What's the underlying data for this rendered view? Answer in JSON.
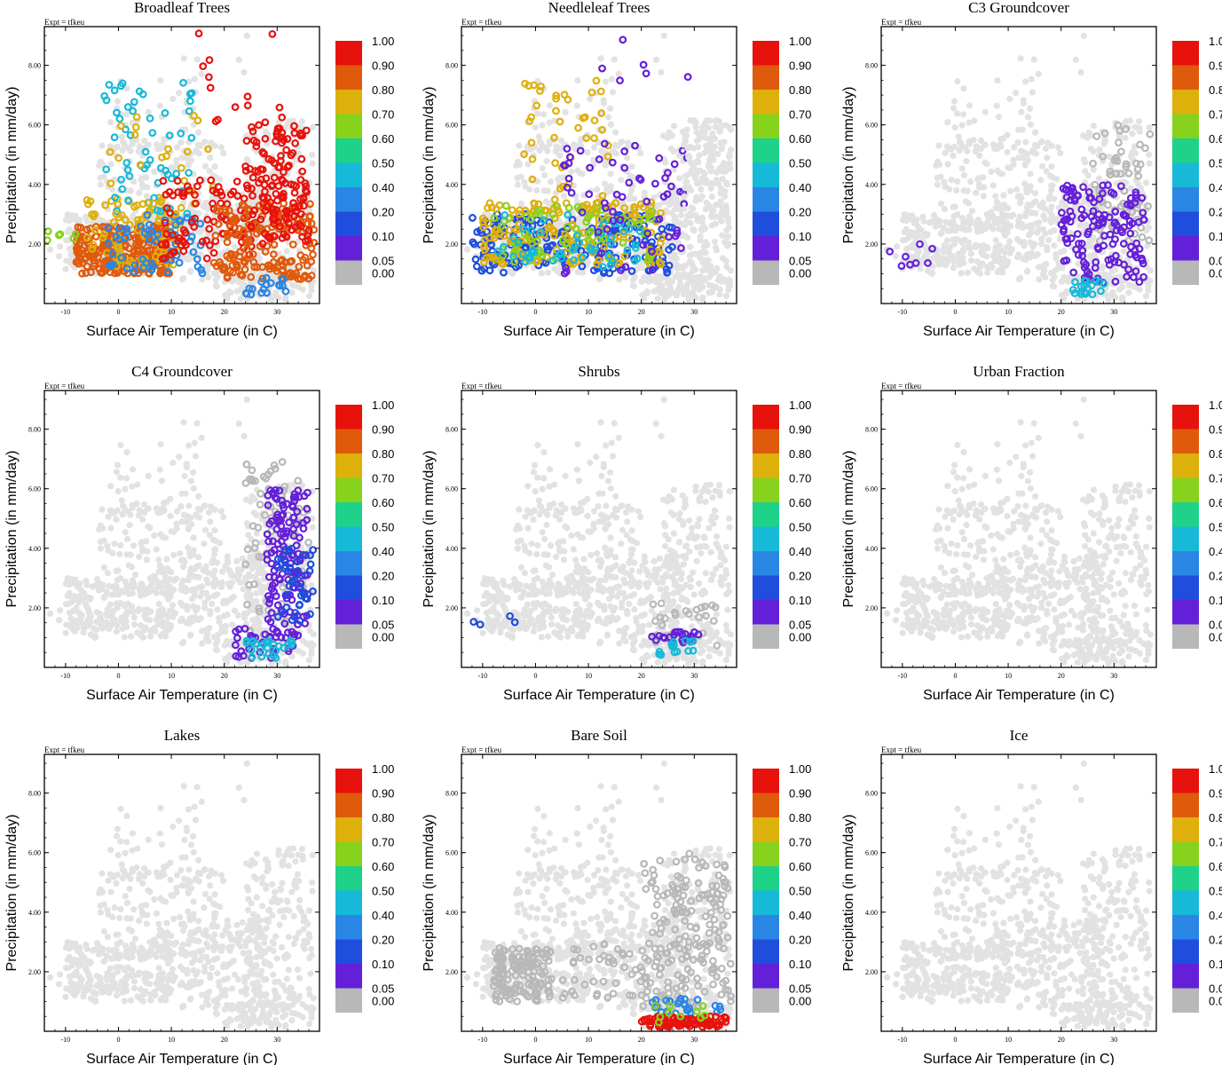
{
  "figure": {
    "expt_label": "Expt = tfkeu",
    "xlabel": "Surface Air Temperature (in C)",
    "ylabel": "Precipitation (in mm/day)",
    "x_ticks": [
      "-10",
      "0",
      "10",
      "20",
      "30"
    ],
    "y_ticks": [
      "2.00",
      "4.00",
      "6.00",
      "8.00"
    ],
    "legend_levels": [
      "1.00",
      "0.90",
      "0.80",
      "0.70",
      "0.60",
      "0.50",
      "0.40",
      "0.20",
      "0.10",
      "0.05",
      "0.00"
    ],
    "legend_colors": [
      "#e8120c",
      "#e05a0c",
      "#deb00c",
      "#86d21c",
      "#1ed28a",
      "#17b9d8",
      "#2a86e4",
      "#1f4ddc",
      "#6420d8",
      "#b8b8b8"
    ],
    "background_point_color": "#e2e2e2"
  },
  "chart_data": [
    {
      "type": "scatter",
      "title": "Broadleaf Trees",
      "xlim": [
        -14,
        38
      ],
      "ylim": [
        0,
        9.3
      ],
      "clusters": [
        {
          "x": [
            -8,
            10
          ],
          "y": [
            1.0,
            2.6
          ],
          "n": 260,
          "color": "#e05a0c"
        },
        {
          "x": [
            -6,
            12
          ],
          "y": [
            1.2,
            3.6
          ],
          "n": 90,
          "color": "#deb00c"
        },
        {
          "x": [
            -2,
            16
          ],
          "y": [
            1.0,
            3.0
          ],
          "n": 60,
          "color": "#2a86e4"
        },
        {
          "x": [
            -3,
            14
          ],
          "y": [
            3.0,
            7.5
          ],
          "n": 55,
          "color": "#17b9d8"
        },
        {
          "x": [
            -2,
            18
          ],
          "y": [
            3.0,
            6.5
          ],
          "n": 25,
          "color": "#deb00c"
        },
        {
          "x": [
            8,
            26
          ],
          "y": [
            1.5,
            4.2
          ],
          "n": 90,
          "color": "#e8120c"
        },
        {
          "x": [
            18,
            37
          ],
          "y": [
            0.8,
            3.4
          ],
          "n": 170,
          "color": "#e05a0c"
        },
        {
          "x": [
            24,
            36
          ],
          "y": [
            2.0,
            6.0
          ],
          "n": 140,
          "color": "#e8120c"
        },
        {
          "x": [
            15,
            32
          ],
          "y": [
            6.0,
            9.1
          ],
          "n": 14,
          "color": "#e8120c"
        },
        {
          "x": [
            24,
            32
          ],
          "y": [
            0.3,
            0.9
          ],
          "n": 18,
          "color": "#2a86e4"
        },
        {
          "x": [
            -14,
            -8
          ],
          "y": [
            1.8,
            2.5
          ],
          "n": 6,
          "color": "#86d21c"
        }
      ]
    },
    {
      "type": "scatter",
      "title": "Needleleaf Trees",
      "xlim": [
        -14,
        38
      ],
      "ylim": [
        0,
        9.3
      ],
      "clusters": [
        {
          "x": [
            -12,
            26
          ],
          "y": [
            1.0,
            3.0
          ],
          "n": 200,
          "color": "#1f4ddc"
        },
        {
          "x": [
            -10,
            24
          ],
          "y": [
            1.3,
            3.4
          ],
          "n": 160,
          "color": "#deb00c"
        },
        {
          "x": [
            -8,
            22
          ],
          "y": [
            1.4,
            3.3
          ],
          "n": 70,
          "color": "#86d21c"
        },
        {
          "x": [
            -8,
            20
          ],
          "y": [
            1.2,
            3.0
          ],
          "n": 50,
          "color": "#17b9d8"
        },
        {
          "x": [
            -3,
            14
          ],
          "y": [
            3.0,
            7.5
          ],
          "n": 45,
          "color": "#deb00c"
        },
        {
          "x": [
            5,
            30
          ],
          "y": [
            1.0,
            5.5
          ],
          "n": 60,
          "color": "#6420d8"
        },
        {
          "x": [
            28,
            37
          ],
          "y": [
            0.3,
            6.2
          ],
          "n": 140,
          "color": "#e2e2e2"
        },
        {
          "x": [
            12,
            30
          ],
          "y": [
            7.0,
            9.1
          ],
          "n": 6,
          "color": "#6420d8"
        }
      ]
    },
    {
      "type": "scatter",
      "title": "C3 Groundcover",
      "xlim": [
        -14,
        38
      ],
      "ylim": [
        0,
        9.3
      ],
      "clusters": [
        {
          "x": [
            26,
            37
          ],
          "y": [
            2.0,
            6.0
          ],
          "n": 60,
          "color": "#b8b8b8"
        },
        {
          "x": [
            20,
            36
          ],
          "y": [
            0.7,
            4.0
          ],
          "n": 140,
          "color": "#6420d8"
        },
        {
          "x": [
            22,
            30
          ],
          "y": [
            0.3,
            0.8
          ],
          "n": 18,
          "color": "#17b9d8"
        },
        {
          "x": [
            -14,
            -4
          ],
          "y": [
            1.2,
            2.1
          ],
          "n": 8,
          "color": "#6420d8"
        }
      ]
    },
    {
      "type": "scatter",
      "title": "C4 Groundcover",
      "xlim": [
        -14,
        38
      ],
      "ylim": [
        0,
        9.3
      ],
      "clusters": [
        {
          "x": [
            24,
            36
          ],
          "y": [
            1.0,
            7.0
          ],
          "n": 80,
          "color": "#b8b8b8"
        },
        {
          "x": [
            28,
            36
          ],
          "y": [
            1.0,
            6.0
          ],
          "n": 130,
          "color": "#6420d8"
        },
        {
          "x": [
            30,
            37
          ],
          "y": [
            1.5,
            4.0
          ],
          "n": 40,
          "color": "#1f4ddc"
        },
        {
          "x": [
            22,
            34
          ],
          "y": [
            0.3,
            1.4
          ],
          "n": 35,
          "color": "#6420d8"
        },
        {
          "x": [
            24,
            33
          ],
          "y": [
            0.3,
            0.9
          ],
          "n": 25,
          "color": "#17b9d8"
        }
      ]
    },
    {
      "type": "scatter",
      "title": "Shrubs",
      "xlim": [
        -14,
        38
      ],
      "ylim": [
        0,
        9.3
      ],
      "clusters": [
        {
          "x": [
            22,
            36
          ],
          "y": [
            0.6,
            2.2
          ],
          "n": 30,
          "color": "#b8b8b8"
        },
        {
          "x": [
            22,
            31
          ],
          "y": [
            0.8,
            1.2
          ],
          "n": 22,
          "color": "#6420d8"
        },
        {
          "x": [
            23,
            30
          ],
          "y": [
            0.4,
            0.9
          ],
          "n": 14,
          "color": "#17b9d8"
        },
        {
          "x": [
            -14,
            -2
          ],
          "y": [
            1.4,
            2.0
          ],
          "n": 4,
          "color": "#1f4ddc"
        }
      ]
    },
    {
      "type": "scatter",
      "title": "Urban Fraction",
      "xlim": [
        -14,
        38
      ],
      "ylim": [
        0,
        9.3
      ],
      "clusters": []
    },
    {
      "type": "scatter",
      "title": "Lakes",
      "xlim": [
        -14,
        38
      ],
      "ylim": [
        0,
        9.3
      ],
      "clusters": []
    },
    {
      "type": "scatter",
      "title": "Bare Soil",
      "xlim": [
        -14,
        38
      ],
      "ylim": [
        0,
        9.3
      ],
      "clusters": [
        {
          "x": [
            -8,
            3
          ],
          "y": [
            1.0,
            2.8
          ],
          "n": 150,
          "color": "#b8b8b8"
        },
        {
          "x": [
            20,
            37
          ],
          "y": [
            0.8,
            6.0
          ],
          "n": 200,
          "color": "#b8b8b8"
        },
        {
          "x": [
            5,
            20
          ],
          "y": [
            1.0,
            3.0
          ],
          "n": 40,
          "color": "#b8b8b8"
        },
        {
          "x": [
            22,
            35
          ],
          "y": [
            0.6,
            1.1
          ],
          "n": 25,
          "color": "#2a86e4"
        },
        {
          "x": [
            20,
            36
          ],
          "y": [
            0.15,
            0.5
          ],
          "n": 90,
          "color": "#e8120c"
        },
        {
          "x": [
            20,
            32
          ],
          "y": [
            0.3,
            0.9
          ],
          "n": 10,
          "color": "#86d21c"
        }
      ]
    },
    {
      "type": "scatter",
      "title": "Ice",
      "xlim": [
        -14,
        38
      ],
      "ylim": [
        0,
        9.3
      ],
      "clusters": []
    }
  ]
}
